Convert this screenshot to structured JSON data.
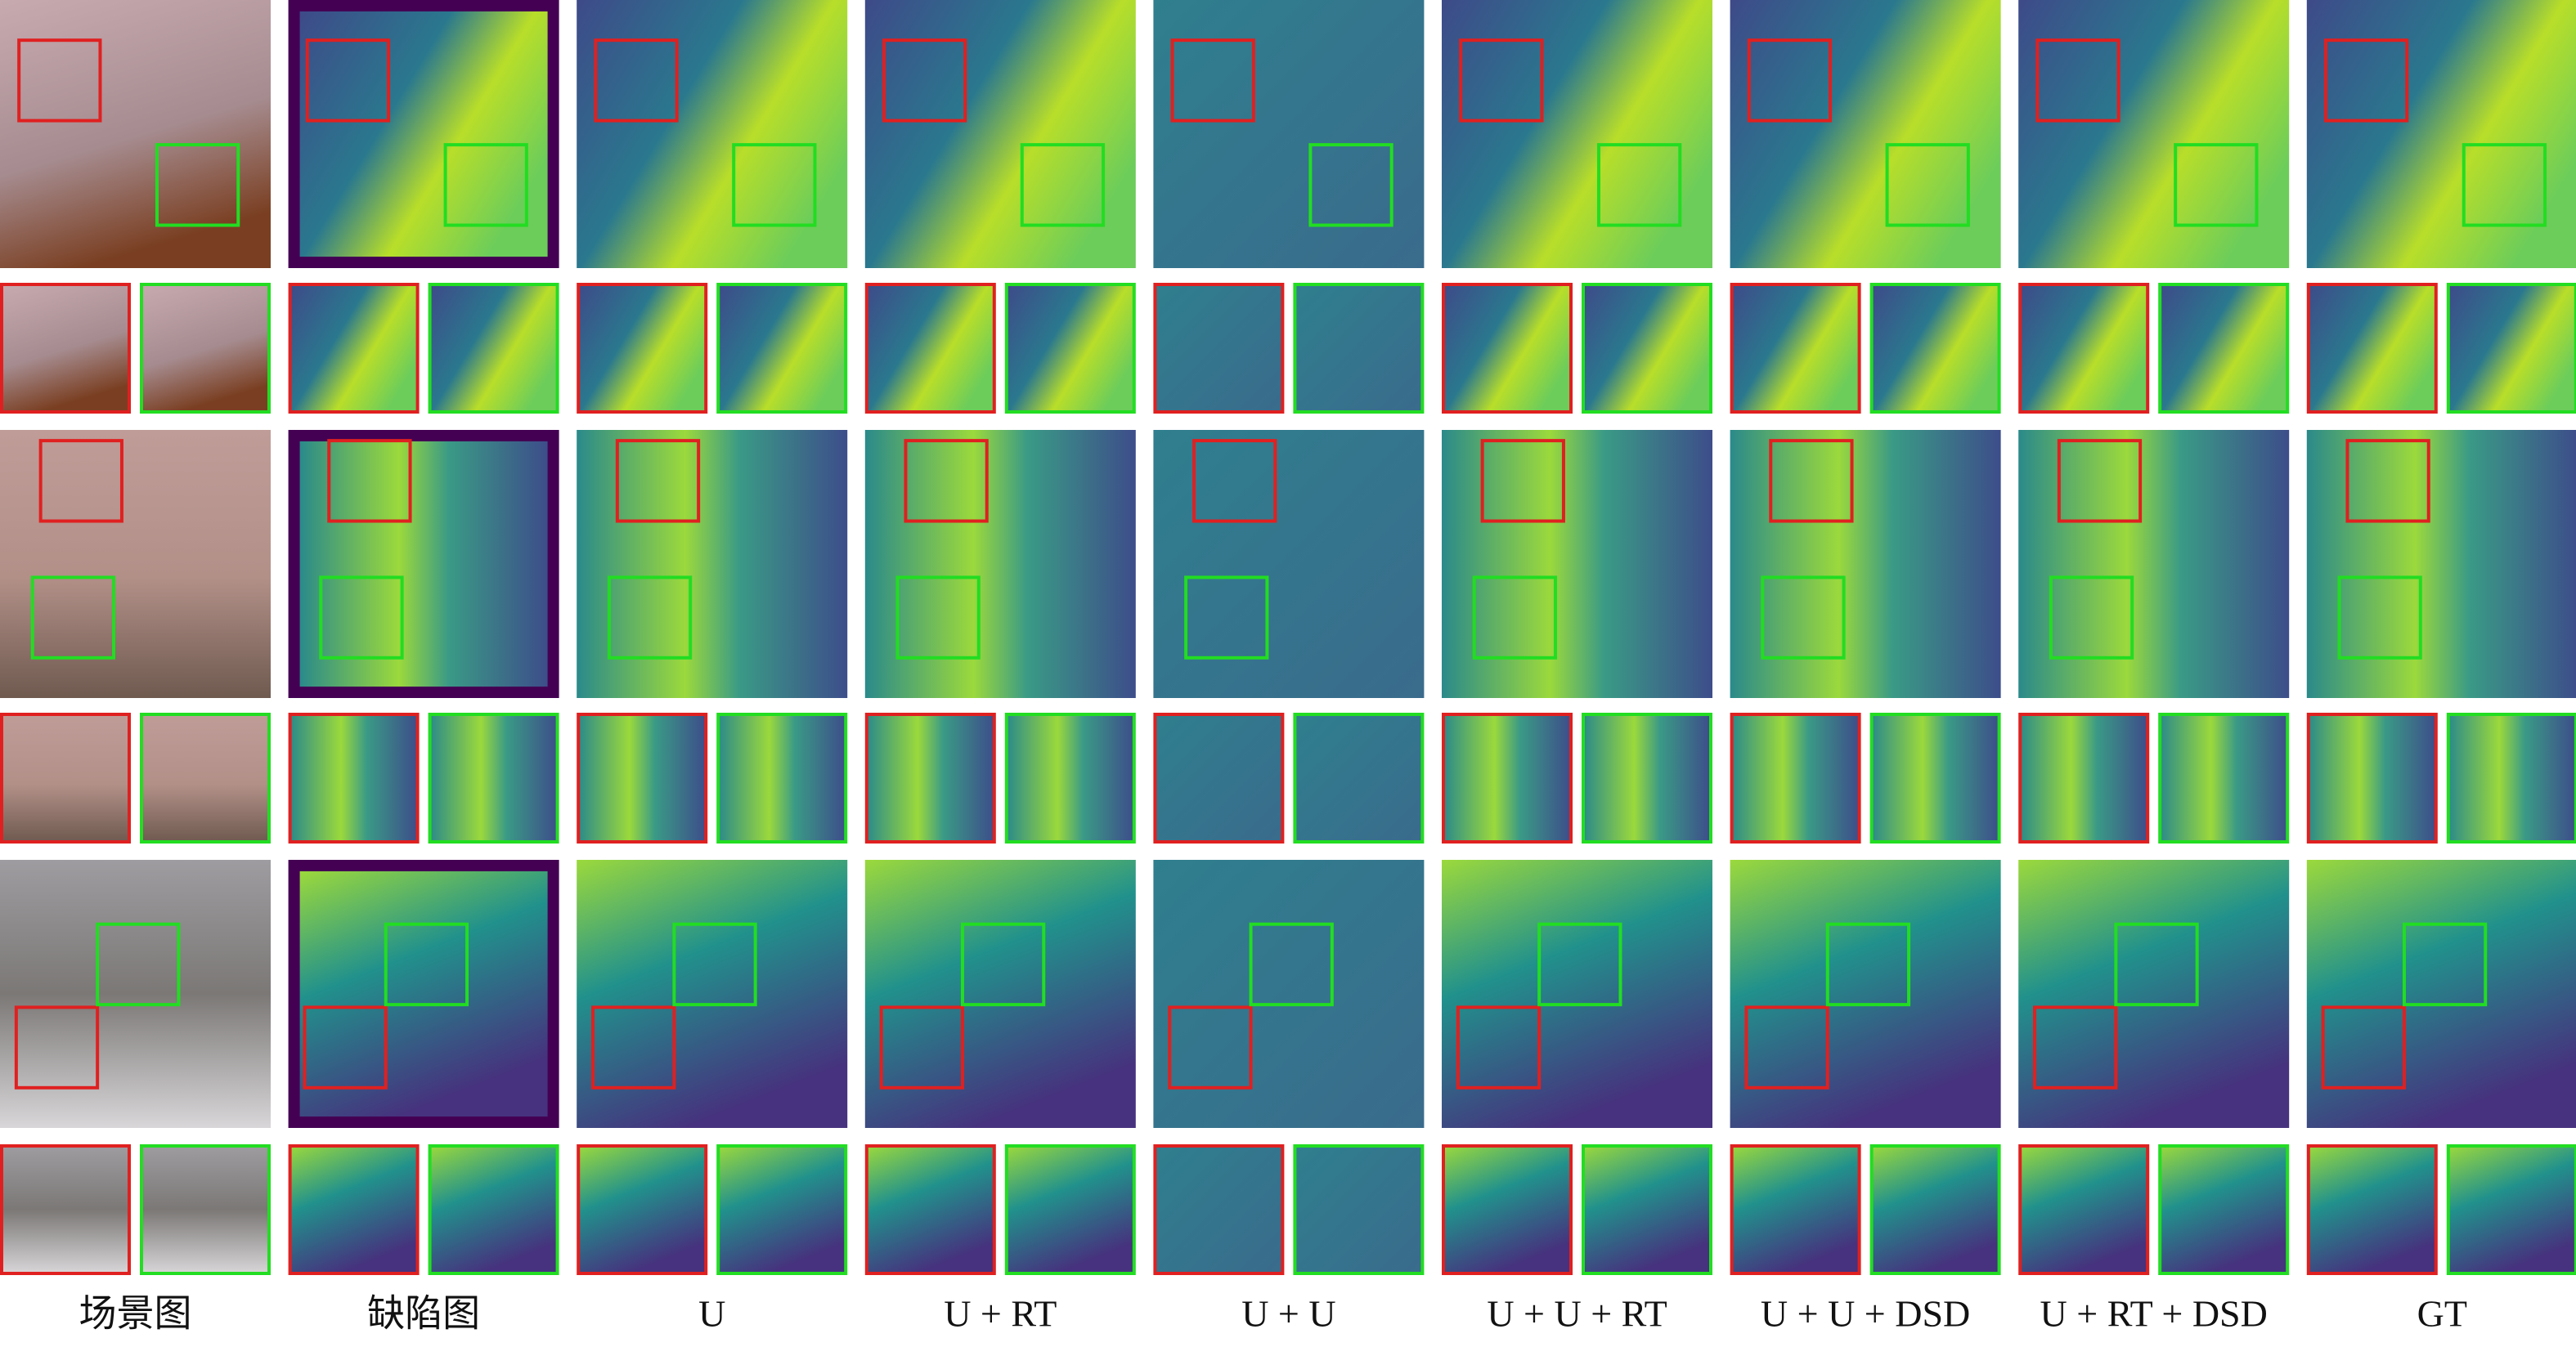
{
  "columns": [
    {
      "label": "场景图"
    },
    {
      "label": "缺陷图"
    },
    {
      "label": "U"
    },
    {
      "label": "U + RT"
    },
    {
      "label": "U + U"
    },
    {
      "label": "U + U + RT"
    },
    {
      "label": "U + U + DSD"
    },
    {
      "label": "U + RT + DSD"
    },
    {
      "label": "GT"
    }
  ]
}
